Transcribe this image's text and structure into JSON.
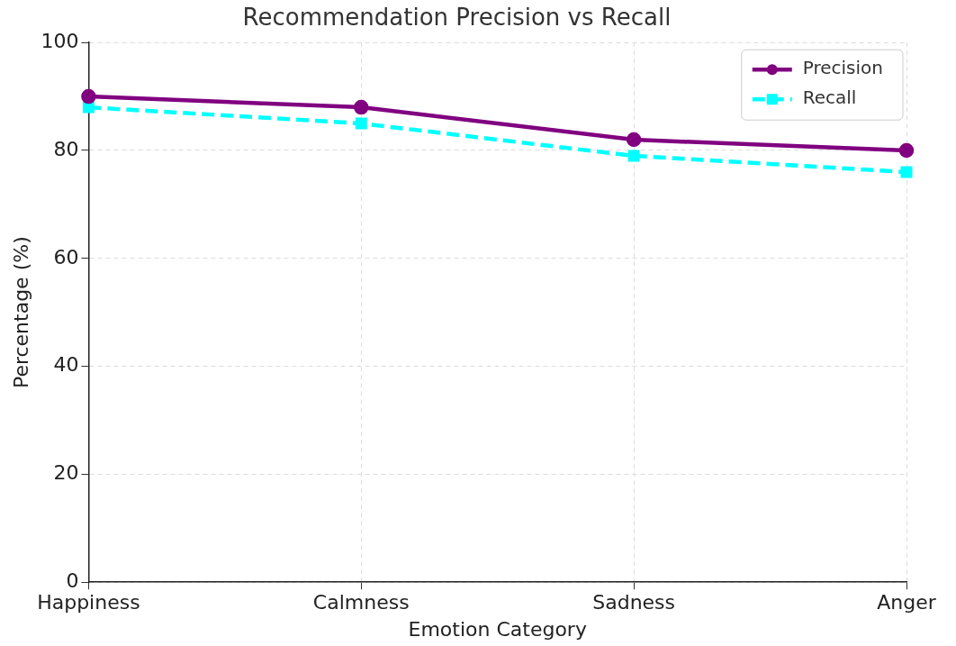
{
  "chart_data": {
    "type": "line",
    "title": "Recommendation Precision vs Recall",
    "xlabel": "Emotion Category",
    "ylabel": "Percentage (%)",
    "categories": [
      "Happiness",
      "Calmness",
      "Sadness",
      "Anger"
    ],
    "series": [
      {
        "name": "Precision",
        "color": "#800080",
        "values": [
          90,
          88,
          82,
          80
        ],
        "marker": "circle",
        "line_style": "solid"
      },
      {
        "name": "Recall",
        "color": "#00ffff",
        "values": [
          88,
          85,
          79,
          76
        ],
        "marker": "square",
        "line_style": "dashed"
      }
    ],
    "ylim": [
      0,
      100
    ],
    "yticks": [
      0,
      20,
      40,
      60,
      80,
      100
    ],
    "grid": true,
    "legend": "top right"
  }
}
